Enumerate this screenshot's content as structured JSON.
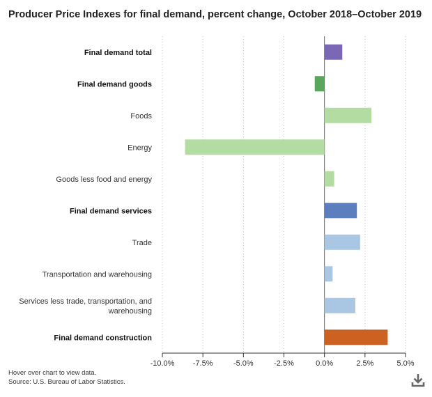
{
  "chart_data": {
    "type": "bar",
    "orientation": "horizontal",
    "title": "Producer Price Indexes for final demand, percent change, October 2018–October 2019",
    "xlabel": "",
    "ylabel": "",
    "xlim": [
      -10,
      5
    ],
    "xticks": [
      -10,
      -7.5,
      -5,
      -2.5,
      0,
      2.5,
      5
    ],
    "xtick_labels": [
      "-10.0%",
      "-7.5%",
      "-5.0%",
      "-2.5%",
      "0.0%",
      "2.5%",
      "5.0%"
    ],
    "grid": true,
    "categories": [
      "Final demand total",
      "Final demand goods",
      "Foods",
      "Energy",
      "Goods less food and energy",
      "Final demand services",
      "Trade",
      "Transportation and warehousing",
      "Services less trade, transportation, and warehousing",
      "Final demand construction"
    ],
    "category_lines": [
      [
        "Final demand total"
      ],
      [
        "Final demand goods"
      ],
      [
        "Foods"
      ],
      [
        "Energy"
      ],
      [
        "Goods less food and energy"
      ],
      [
        "Final demand services"
      ],
      [
        "Trade"
      ],
      [
        "Transportation and warehousing"
      ],
      [
        "Services less trade, transportation, and",
        "warehousing"
      ],
      [
        "Final demand construction"
      ]
    ],
    "bold_categories": [
      true,
      true,
      false,
      false,
      false,
      true,
      false,
      false,
      false,
      true
    ],
    "values": [
      1.1,
      -0.6,
      2.9,
      -8.6,
      0.6,
      2.0,
      2.2,
      0.5,
      1.9,
      3.9
    ],
    "colors": [
      "#7b68b5",
      "#5aa65a",
      "#b3dca3",
      "#b3dca3",
      "#b3dca3",
      "#5b7fbe",
      "#a9c6e2",
      "#a9c6e2",
      "#a9c6e2",
      "#cb6222"
    ]
  },
  "footnotes": {
    "hover_note": "Hover over chart to view data.",
    "source": "Source: U.S. Bureau of Labor Statistics."
  },
  "icons": {
    "download": "download-icon"
  }
}
